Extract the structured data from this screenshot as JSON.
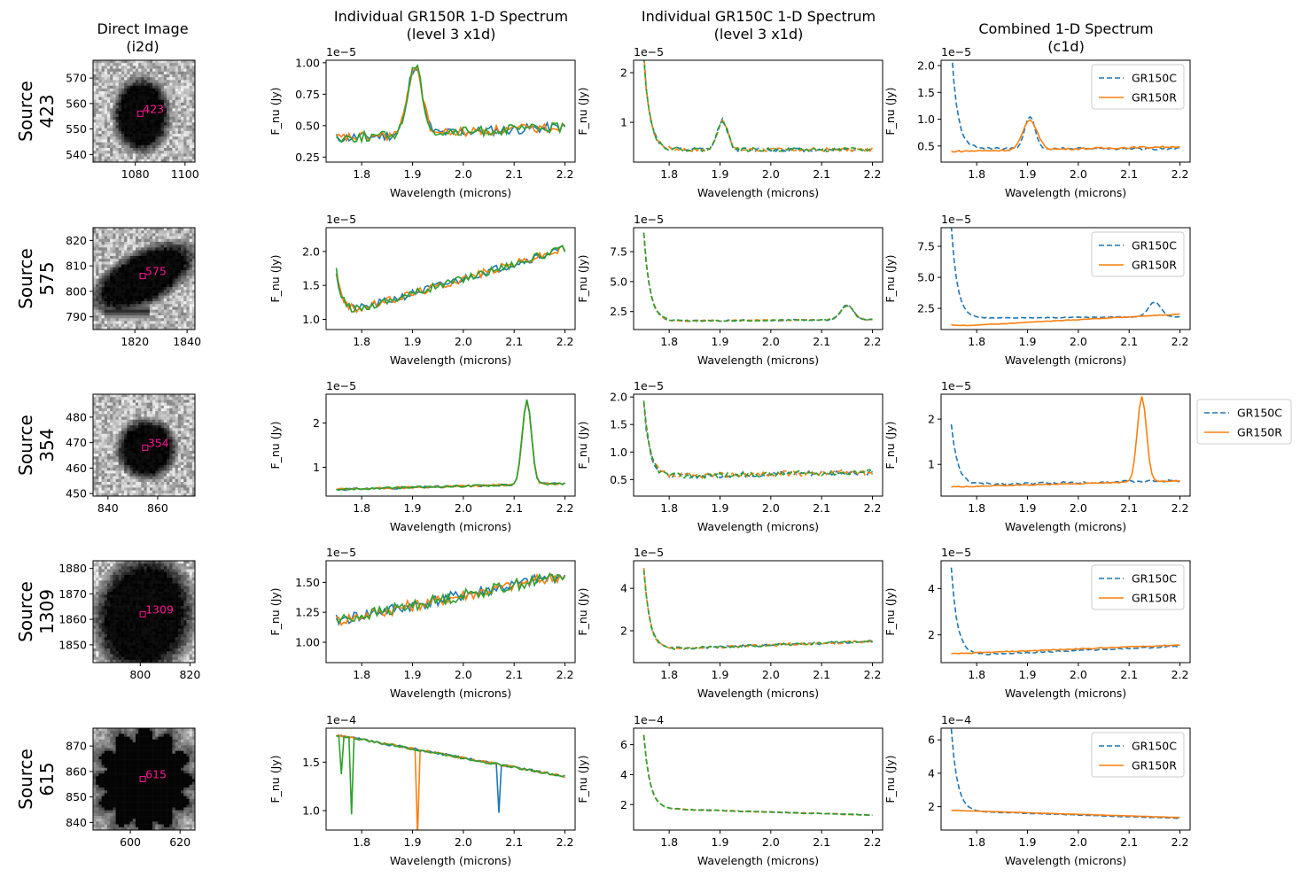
{
  "figure": {
    "column_titles": [
      [
        "Direct Image",
        "(i2d)"
      ],
      [
        "Individual GR150R 1-D Spectrum",
        "(level 3 x1d)"
      ],
      [
        "Individual GR150C 1-D Spectrum",
        "(level 3 x1d)"
      ],
      [
        "Combined 1-D Spectrum",
        "(c1d)"
      ]
    ]
  },
  "colors": {
    "c0": "#1f77b4",
    "c1": "#ff7f0e",
    "c2": "#2ca02c",
    "marker": "#ff1493"
  },
  "chart_data": [
    {
      "type": "line",
      "source_id": "423",
      "row_label": [
        "Source",
        "423"
      ],
      "direct_image": {
        "xlim": [
          1063,
          1104
        ],
        "ylim": [
          537,
          577
        ],
        "xticks": [
          1080,
          1100
        ],
        "yticks": [
          540,
          550,
          560,
          570
        ],
        "source_x": 1082,
        "source_y": 556,
        "label": "423"
      },
      "x1d_r": {
        "xlabel": "Wavelength (microns)",
        "ylabel": "F_nu (Jy)",
        "offset": "1e−5",
        "xlim": [
          1.73,
          2.22
        ],
        "ylim": [
          0.21,
          1.02
        ],
        "xticks": [
          "1.8",
          "1.9",
          "2.0",
          "2.1",
          "2.2"
        ],
        "yticks": [
          "0.25",
          "0.50",
          "0.75",
          "1.00"
        ],
        "baseline": 0.4,
        "slope": 0.2,
        "noise": 0.04,
        "lines": [
          {
            "c": 1.905,
            "a": 0.55,
            "w": 0.014
          }
        ],
        "edge": 0,
        "seed": 11
      },
      "x1d_c": {
        "xlabel": "Wavelength (microns)",
        "ylabel": "F_nu (Jy)",
        "offset": "1e−5",
        "xlim": [
          1.73,
          2.22
        ],
        "ylim": [
          0.2,
          2.25
        ],
        "xticks": [
          "1.8",
          "1.9",
          "2.0",
          "2.1",
          "2.2"
        ],
        "yticks": [
          "1",
          "2"
        ],
        "baseline": 0.45,
        "slope": 0,
        "noise": 0.04,
        "lines": [
          {
            "c": 1.905,
            "a": 0.6,
            "w": 0.01
          }
        ],
        "edge": 1.9,
        "seed": 12
      },
      "c1d": {
        "xlabel": "Wavelength (microns)",
        "ylabel": "F_nu (Jy)",
        "offset": "1e−5",
        "xlim": [
          1.73,
          2.22
        ],
        "ylim": [
          0.2,
          2.1
        ],
        "xticks": [
          "1.8",
          "1.9",
          "2.0",
          "2.1",
          "2.2"
        ],
        "yticks": [
          "0.5",
          "1.0",
          "1.5",
          "2.0"
        ],
        "legend": [
          "GR150C",
          "GR150R"
        ],
        "legend_loc": "upper right"
      }
    },
    {
      "type": "line",
      "source_id": "575",
      "row_label": [
        "Source",
        "575"
      ],
      "direct_image": {
        "xlim": [
          1804,
          1843
        ],
        "ylim": [
          785,
          825
        ],
        "xticks": [
          1820,
          1840
        ],
        "yticks": [
          790,
          800,
          810,
          820
        ],
        "source_x": 1823,
        "source_y": 806,
        "label": "575"
      },
      "x1d_r": {
        "xlabel": "Wavelength (microns)",
        "ylabel": "F_nu (Jy)",
        "offset": "1e−5",
        "xlim": [
          1.73,
          2.22
        ],
        "ylim": [
          0.85,
          2.35
        ],
        "xticks": [
          "1.8",
          "1.9",
          "2.0",
          "2.1",
          "2.2"
        ],
        "yticks": [
          "1.0",
          "1.5",
          "2.0"
        ],
        "baseline": 1.05,
        "slope": 2.2,
        "noise": 0.06,
        "lines": [],
        "edge": 0.65,
        "seed": 21
      },
      "x1d_c": {
        "xlabel": "Wavelength (microns)",
        "ylabel": "F_nu (Jy)",
        "offset": "1e−5",
        "xlim": [
          1.73,
          2.22
        ],
        "ylim": [
          1.0,
          9.5
        ],
        "xticks": [
          "1.8",
          "1.9",
          "2.0",
          "2.1",
          "2.2"
        ],
        "yticks": [
          "2.5",
          "5.0",
          "7.5"
        ],
        "baseline": 1.7,
        "slope": 0.3,
        "noise": 0.06,
        "lines": [
          {
            "c": 2.15,
            "a": 1.2,
            "w": 0.012
          }
        ],
        "edge": 7.4,
        "seed": 22
      },
      "c1d": {
        "xlabel": "Wavelength (microns)",
        "ylabel": "F_nu (Jy)",
        "offset": "1e−5",
        "xlim": [
          1.73,
          2.22
        ],
        "ylim": [
          0.8,
          9.0
        ],
        "xticks": [
          "1.8",
          "1.9",
          "2.0",
          "2.1",
          "2.2"
        ],
        "yticks": [
          "2.5",
          "5.0",
          "7.5"
        ],
        "legend": [
          "GR150C",
          "GR150R"
        ],
        "legend_loc": "upper right"
      }
    },
    {
      "type": "line",
      "source_id": "354",
      "row_label": [
        "Source",
        "354"
      ],
      "direct_image": {
        "xlim": [
          834,
          875
        ],
        "ylim": [
          449,
          489
        ],
        "xticks": [
          840,
          860
        ],
        "yticks": [
          450,
          460,
          470,
          480
        ],
        "source_x": 855,
        "source_y": 468,
        "label": "354"
      },
      "x1d_r": {
        "xlabel": "Wavelength (microns)",
        "ylabel": "F_nu (Jy)",
        "offset": "1e−5",
        "xlim": [
          1.73,
          2.22
        ],
        "ylim": [
          0.35,
          2.65
        ],
        "xticks": [
          "1.8",
          "1.9",
          "2.0",
          "2.1",
          "2.2"
        ],
        "yticks": [
          "1",
          "2"
        ],
        "baseline": 0.5,
        "slope": 0.3,
        "noise": 0.025,
        "lines": [
          {
            "c": 2.125,
            "a": 1.9,
            "w": 0.009
          }
        ],
        "edge": 0,
        "seed": 31
      },
      "x1d_c": {
        "xlabel": "Wavelength (microns)",
        "ylabel": "F_nu (Jy)",
        "offset": "1e−5",
        "xlim": [
          1.73,
          2.22
        ],
        "ylim": [
          0.2,
          2.05
        ],
        "xticks": [
          "1.8",
          "1.9",
          "2.0",
          "2.1",
          "2.2"
        ],
        "yticks": [
          "0.5",
          "1.0",
          "1.5",
          "2.0"
        ],
        "baseline": 0.55,
        "slope": 0.2,
        "noise": 0.05,
        "lines": [],
        "edge": 1.35,
        "seed": 32
      },
      "c1d": {
        "xlabel": "Wavelength (microns)",
        "ylabel": "F_nu (Jy)",
        "offset": "1e−5",
        "xlim": [
          1.73,
          2.22
        ],
        "ylim": [
          0.3,
          2.55
        ],
        "xticks": [
          "1.8",
          "1.9",
          "2.0",
          "2.1",
          "2.2"
        ],
        "yticks": [
          "1",
          "2"
        ],
        "legend": [
          "GR150C",
          "GR150R"
        ],
        "legend_loc": "outside right"
      }
    },
    {
      "type": "line",
      "source_id": "1309",
      "row_label": [
        "Source",
        "1309"
      ],
      "direct_image": {
        "xlim": [
          781,
          822
        ],
        "ylim": [
          1843,
          1883
        ],
        "xticks": [
          800,
          820
        ],
        "yticks": [
          1850,
          1860,
          1870,
          1880
        ],
        "source_x": 801,
        "source_y": 1862,
        "label": "1309"
      },
      "x1d_r": {
        "xlabel": "Wavelength (microns)",
        "ylabel": "F_nu (Jy)",
        "offset": "1e−5",
        "xlim": [
          1.73,
          2.22
        ],
        "ylim": [
          0.83,
          1.68
        ],
        "xticks": [
          "1.8",
          "1.9",
          "2.0",
          "2.1",
          "2.2"
        ],
        "yticks": [
          "1.00",
          "1.25",
          "1.50"
        ],
        "baseline": 1.18,
        "slope": 0.85,
        "noise": 0.05,
        "lines": [],
        "edge": 0,
        "seed": 41
      },
      "x1d_c": {
        "xlabel": "Wavelength (microns)",
        "ylabel": "F_nu (Jy)",
        "offset": "1e−5",
        "xlim": [
          1.73,
          2.22
        ],
        "ylim": [
          0.5,
          5.3
        ],
        "xticks": [
          "1.8",
          "1.9",
          "2.0",
          "2.1",
          "2.2"
        ],
        "yticks": [
          "2",
          "4"
        ],
        "baseline": 1.1,
        "slope": 0.9,
        "noise": 0.06,
        "lines": [],
        "edge": 3.8,
        "seed": 42
      },
      "c1d": {
        "xlabel": "Wavelength (microns)",
        "ylabel": "F_nu (Jy)",
        "offset": "1e−5",
        "xlim": [
          1.73,
          2.22
        ],
        "ylim": [
          0.8,
          5.2
        ],
        "xticks": [
          "1.8",
          "1.9",
          "2.0",
          "2.1",
          "2.2"
        ],
        "yticks": [
          "2",
          "4"
        ],
        "legend": [
          "GR150C",
          "GR150R"
        ],
        "legend_loc": "upper right"
      }
    },
    {
      "type": "line",
      "source_id": "615",
      "row_label": [
        "Source",
        "615"
      ],
      "direct_image": {
        "xlim": [
          585,
          626
        ],
        "ylim": [
          837,
          877
        ],
        "xticks": [
          600,
          620
        ],
        "yticks": [
          840,
          850,
          860,
          870
        ],
        "source_x": 605,
        "source_y": 857,
        "label": "615"
      },
      "x1d_r": {
        "xlabel": "Wavelength (microns)",
        "ylabel": "F_nu (Jy)",
        "offset": "1e−4",
        "xlim": [
          1.73,
          2.22
        ],
        "ylim": [
          0.8,
          1.85
        ],
        "xticks": [
          "1.8",
          "1.9",
          "2.0",
          "2.1",
          "2.2"
        ],
        "yticks": [
          "1.0",
          "1.5"
        ],
        "baseline": 1.78,
        "slope": -0.95,
        "noise": 0.012,
        "lines": [],
        "edge": 0,
        "seed": 51
      },
      "x1d_c": {
        "xlabel": "Wavelength (microns)",
        "ylabel": "F_nu (Jy)",
        "offset": "1e−4",
        "xlim": [
          1.73,
          2.22
        ],
        "ylim": [
          0.3,
          7.1
        ],
        "xticks": [
          "1.8",
          "1.9",
          "2.0",
          "2.1",
          "2.2"
        ],
        "yticks": [
          "2",
          "4",
          "6"
        ],
        "baseline": 1.75,
        "slope": -1.0,
        "noise": 0.03,
        "lines": [],
        "edge": 4.9,
        "seed": 52
      },
      "c1d": {
        "xlabel": "Wavelength (microns)",
        "ylabel": "F_nu (Jy)",
        "offset": "1e−4",
        "xlim": [
          1.73,
          2.22
        ],
        "ylim": [
          0.6,
          6.7
        ],
        "xticks": [
          "1.8",
          "1.9",
          "2.0",
          "2.1",
          "2.2"
        ],
        "yticks": [
          "2",
          "4",
          "6"
        ],
        "legend": [
          "GR150C",
          "GR150R"
        ],
        "legend_loc": "upper right"
      }
    }
  ]
}
